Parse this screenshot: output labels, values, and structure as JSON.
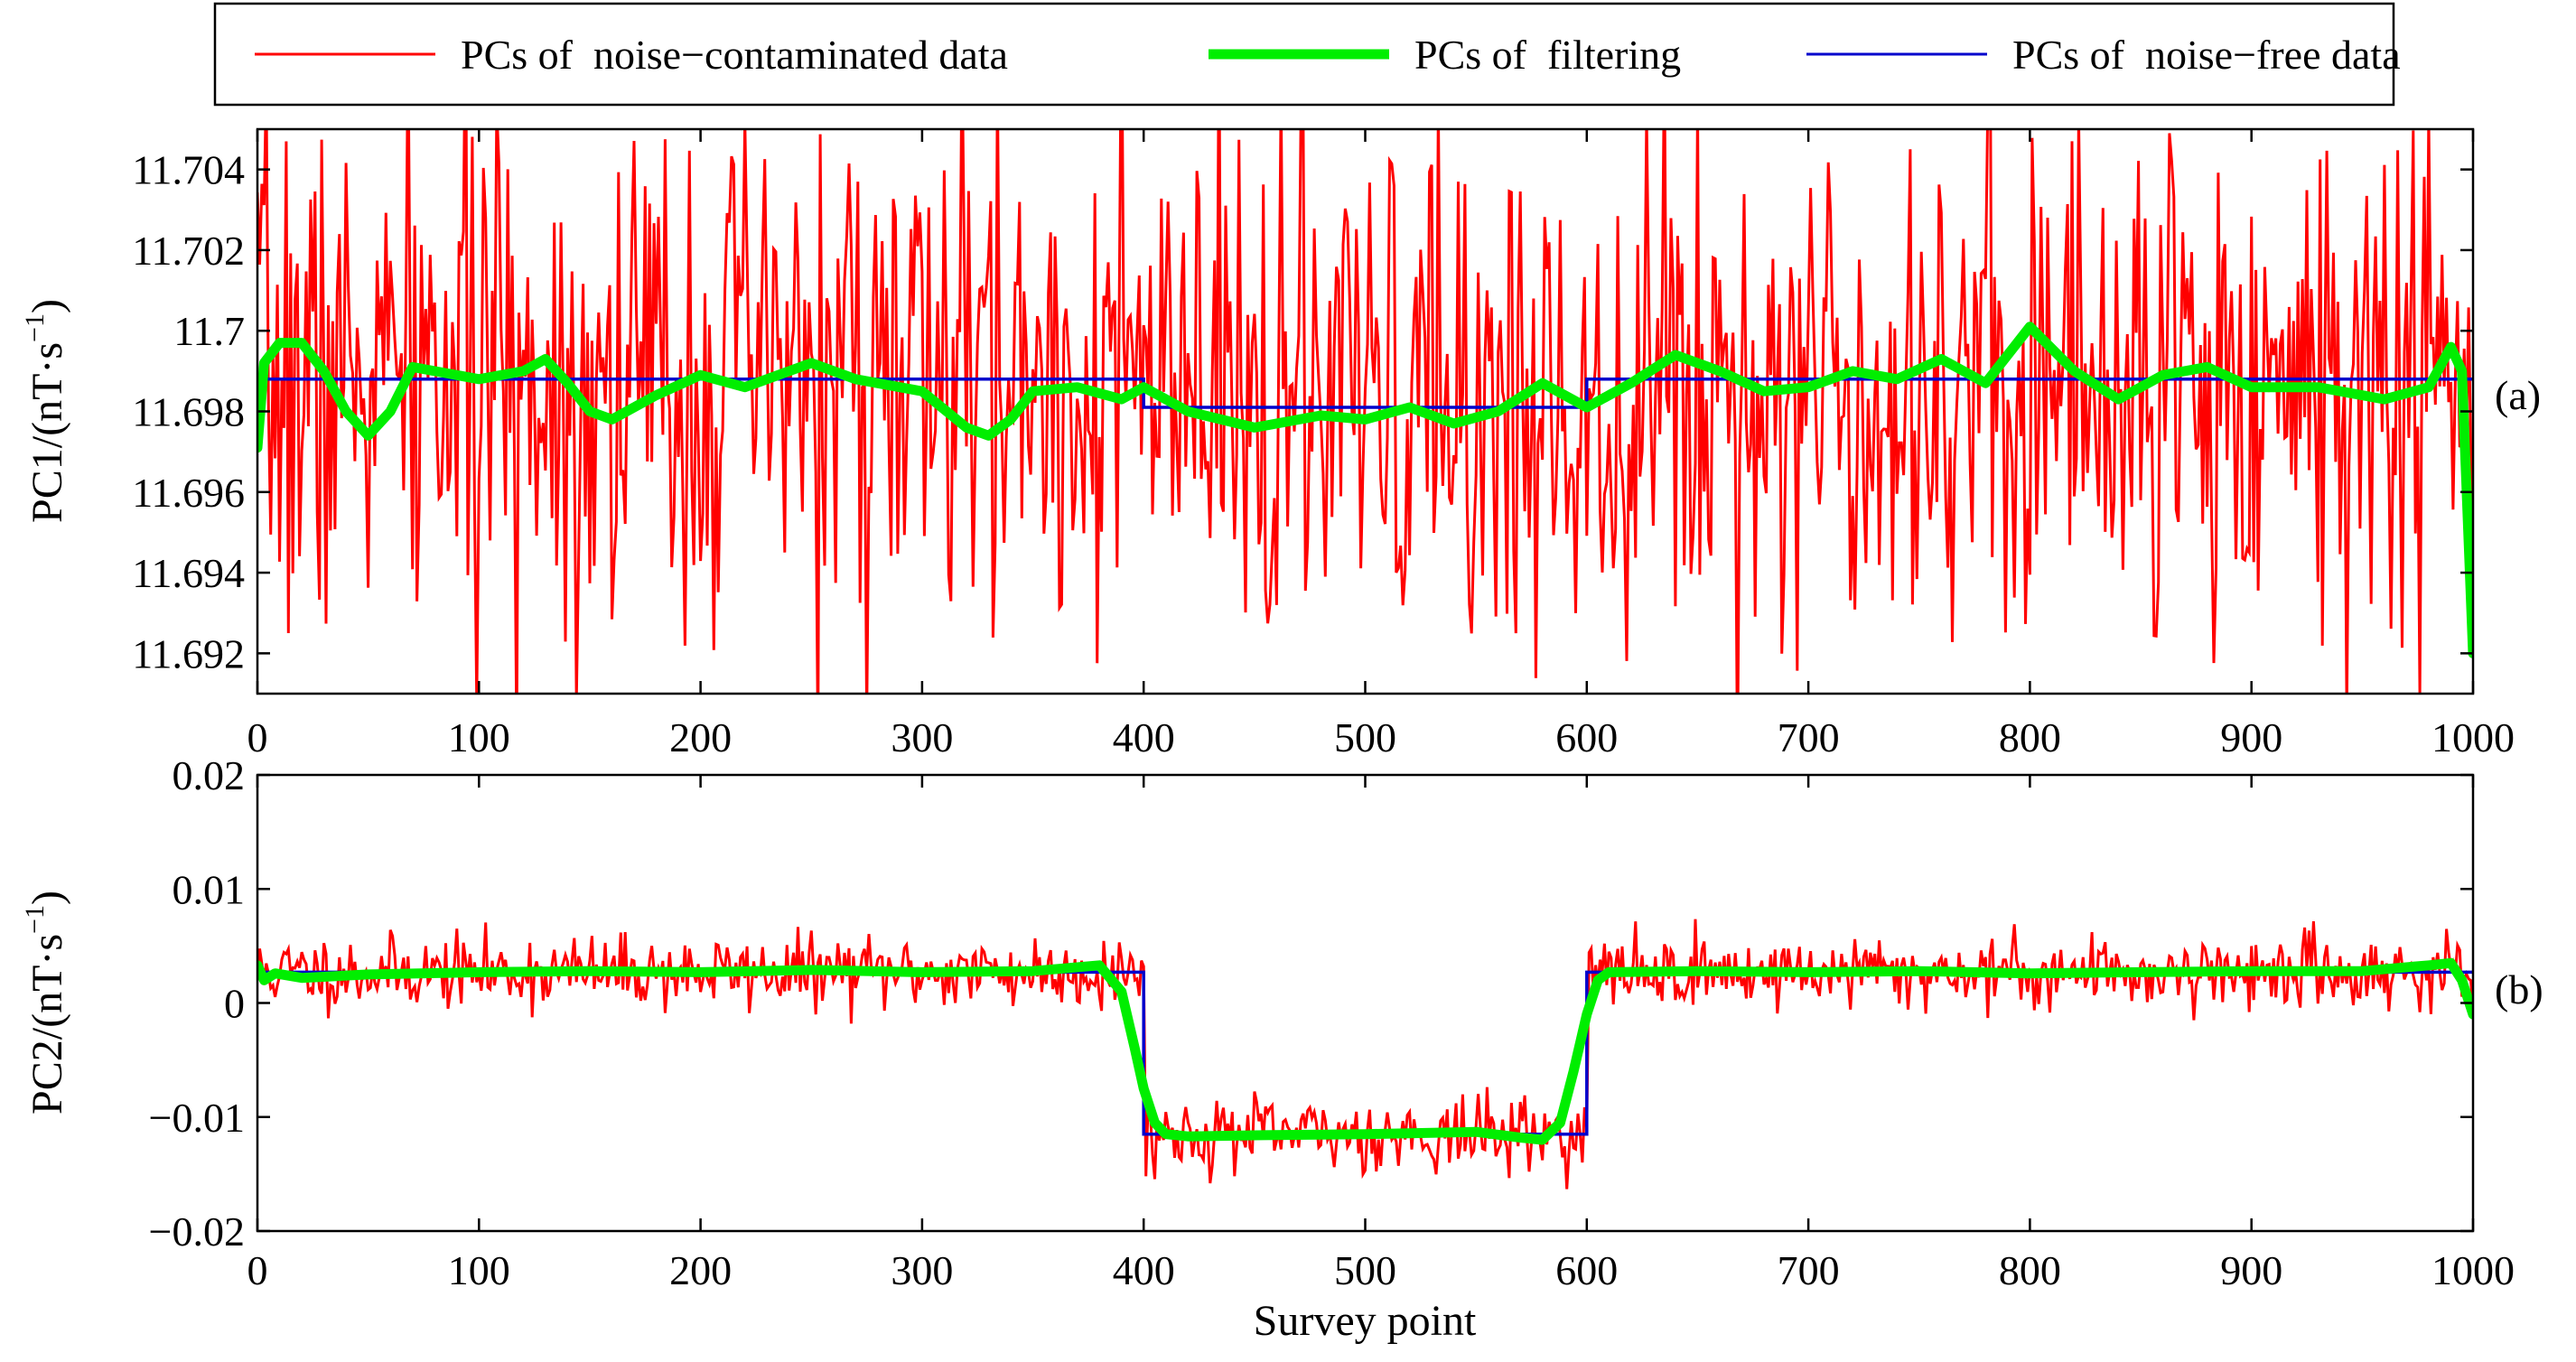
{
  "chart_data": [
    {
      "type": "line",
      "panel_tag": "(a)",
      "ylabel": "PC1/(nT·s",
      "ylabel_sup": "−1",
      "ylabel_close": ")",
      "xlabel": "",
      "xlim": [
        0,
        1000
      ],
      "ylim": [
        11.691,
        11.705
      ],
      "xticks": [
        0,
        100,
        200,
        300,
        400,
        500,
        600,
        700,
        800,
        900,
        1000
      ],
      "xtick_labels": [
        "0",
        "100",
        "200",
        "300",
        "400",
        "500",
        "600",
        "700",
        "800",
        "900",
        "1000"
      ],
      "yticks": [
        11.692,
        11.694,
        11.696,
        11.698,
        11.7,
        11.702,
        11.704
      ],
      "ytick_labels": [
        "11.692",
        "11.694",
        "11.696",
        "11.698",
        "11.7",
        "11.702",
        "11.704"
      ],
      "series": [
        {
          "name": "PCs of  noise−contaminated data",
          "color": "#ff0000",
          "kind": "noise",
          "noise_sigma": 0.0032,
          "seed": 7
        },
        {
          "name": "PCs of  filtering",
          "color": "#00ee00",
          "kind": "points",
          "x": [
            0,
            3,
            10,
            20,
            30,
            40,
            50,
            60,
            70,
            80,
            100,
            120,
            130,
            140,
            150,
            160,
            180,
            200,
            220,
            250,
            270,
            300,
            320,
            330,
            340,
            350,
            370,
            390,
            400,
            420,
            450,
            480,
            500,
            520,
            540,
            560,
            580,
            600,
            620,
            640,
            660,
            680,
            700,
            720,
            740,
            760,
            780,
            800,
            820,
            840,
            860,
            880,
            900,
            930,
            960,
            980,
            990,
            995,
            1000
          ],
          "y": [
            11.6971,
            11.6992,
            11.6997,
            11.6997,
            11.699,
            11.698,
            11.6974,
            11.698,
            11.6991,
            11.699,
            11.6988,
            11.699,
            11.6993,
            11.6987,
            11.698,
            11.6978,
            11.6984,
            11.6989,
            11.6986,
            11.6992,
            11.6988,
            11.6985,
            11.6976,
            11.6974,
            11.6978,
            11.6985,
            11.6986,
            11.6983,
            11.6986,
            11.698,
            11.6976,
            11.6979,
            11.6978,
            11.6981,
            11.6977,
            11.698,
            11.6987,
            11.6981,
            11.6987,
            11.6994,
            11.699,
            11.6985,
            11.6986,
            11.699,
            11.6988,
            11.6993,
            11.6987,
            11.7001,
            11.699,
            11.6983,
            11.6989,
            11.6991,
            11.6986,
            11.6986,
            11.6983,
            11.6986,
            11.6996,
            11.699,
            11.692
          ]
        },
        {
          "name": "PCs of  noise−free data",
          "color": "#0000cc",
          "kind": "points",
          "x": [
            0,
            400,
            400,
            600,
            600,
            1000
          ],
          "y": [
            11.6988,
            11.6988,
            11.6981,
            11.6981,
            11.6988,
            11.6988
          ]
        }
      ]
    },
    {
      "type": "line",
      "panel_tag": "(b)",
      "ylabel": "PC2/(nT·s",
      "ylabel_sup": "−1",
      "ylabel_close": ")",
      "xlabel": "Survey point",
      "xlim": [
        0,
        1000
      ],
      "ylim": [
        -0.02,
        0.02
      ],
      "xticks": [
        0,
        100,
        200,
        300,
        400,
        500,
        600,
        700,
        800,
        900,
        1000
      ],
      "xtick_labels": [
        "0",
        "100",
        "200",
        "300",
        "400",
        "500",
        "600",
        "700",
        "800",
        "900",
        "1000"
      ],
      "yticks": [
        -0.02,
        -0.01,
        0,
        0.01,
        0.02
      ],
      "ytick_labels": [
        "−0.02",
        "−0.01",
        "0",
        "0.01",
        "0.02"
      ],
      "series": [
        {
          "name": "PCs of  noise−contaminated data",
          "color": "#ff0000",
          "kind": "noise",
          "base_x": [
            0,
            400,
            400,
            600,
            600,
            1000
          ],
          "base_y": [
            0.0027,
            0.0027,
            -0.0115,
            -0.0115,
            0.0027,
            0.0027
          ],
          "noise_sigma": 0.0016,
          "seed": 11
        },
        {
          "name": "PCs of  filtering",
          "color": "#00ee00",
          "kind": "points",
          "x": [
            0,
            3,
            8,
            20,
            50,
            100,
            150,
            200,
            250,
            300,
            350,
            380,
            390,
            396,
            400,
            405,
            410,
            420,
            450,
            500,
            550,
            570,
            580,
            588,
            594,
            600,
            605,
            610,
            650,
            700,
            750,
            800,
            850,
            900,
            950,
            980,
            990,
            995,
            1000
          ],
          "y": [
            0.0033,
            0.002,
            0.0026,
            0.0022,
            0.0025,
            0.0027,
            0.0028,
            0.0027,
            0.0029,
            0.0027,
            0.0028,
            0.0033,
            0.001,
            -0.004,
            -0.0075,
            -0.0105,
            -0.0115,
            -0.0117,
            -0.0116,
            -0.0115,
            -0.0113,
            -0.0118,
            -0.012,
            -0.0105,
            -0.006,
            -0.001,
            0.002,
            0.0027,
            0.0028,
            0.0027,
            0.0028,
            0.0026,
            0.0027,
            0.0028,
            0.0028,
            0.0033,
            0.0035,
            0.002,
            -0.001
          ]
        },
        {
          "name": "PCs of  noise−free data",
          "color": "#0000cc",
          "kind": "points",
          "x": [
            0,
            400,
            400,
            600,
            600,
            1000
          ],
          "y": [
            0.0027,
            0.0027,
            -0.0115,
            -0.0115,
            0.0027,
            0.0027
          ]
        }
      ]
    }
  ],
  "legend": {
    "items": [
      {
        "label": "PCs of  noise−contaminated data",
        "color": "#ff0000",
        "weight": "thin"
      },
      {
        "label": "PCs of  filtering",
        "color": "#00ee00",
        "weight": "thick"
      },
      {
        "label": "PCs of  noise−free data",
        "color": "#0000cc",
        "weight": "thin"
      }
    ]
  }
}
